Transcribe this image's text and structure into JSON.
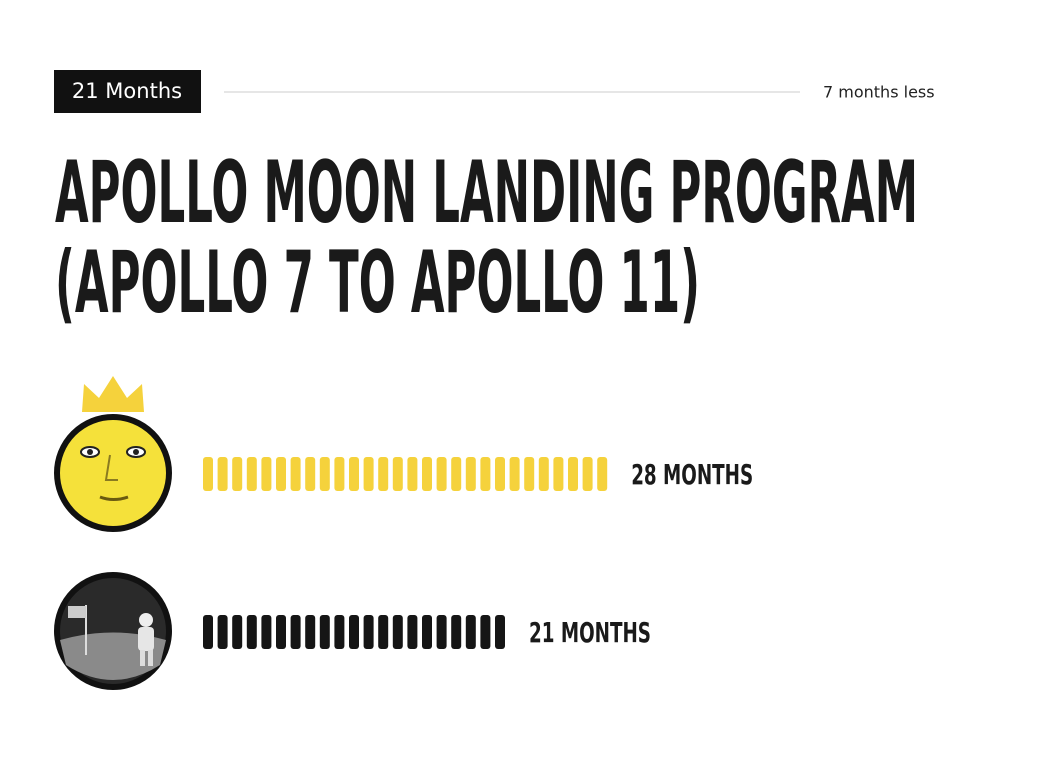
{
  "header": {
    "badge": "21 Months",
    "note": "7 months less"
  },
  "title": [
    "APOLLO MOON LANDING PROGRAM",
    "(APOLLO 7 TO APOLLO 11)"
  ],
  "rows": [
    {
      "value": 28,
      "label": "28 MONTHS",
      "color": "#f5d23c"
    },
    {
      "value": 21,
      "label": "21 MONTHS",
      "color": "#151515"
    }
  ]
}
